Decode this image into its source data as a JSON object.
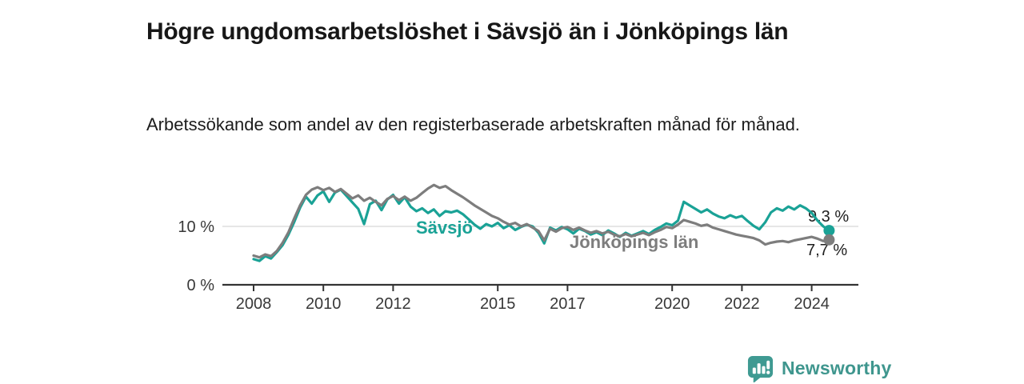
{
  "header": {
    "title": "Högre ungdomsarbetslöshet i Sävsjö än i Jönköpings län",
    "subtitle": "Arbetssökande som andel av den registerbaserade arbetskraften månad för månad."
  },
  "chart_data": {
    "type": "line",
    "title": "Högre ungdomsarbetslöshet i Sävsjö än i Jönköpings län",
    "subtitle": "Arbetssökande som andel av den registerbaserade arbetskraften månad för månad.",
    "x_start": 2008.0,
    "x_end": 2024.5,
    "x_ticks": [
      2008,
      2010,
      2012,
      2015,
      2017,
      2020,
      2022,
      2024
    ],
    "y_axis": {
      "ticks": [
        {
          "value": 10,
          "label": "10 %"
        },
        {
          "value": 0,
          "label": "0 %"
        }
      ],
      "ylim": [
        0,
        18
      ],
      "unit": "%"
    },
    "grid": "horizontal, only at 10 %",
    "legend": "inline labels on lines",
    "series": [
      {
        "name": "Sävsjö",
        "color": "#1aa296",
        "end_label": "9,3 %",
        "end_value": 9.3,
        "values": [
          4.4,
          4.1,
          4.9,
          4.5,
          5.6,
          6.8,
          8.6,
          10.8,
          13.2,
          15.1,
          13.9,
          15.3,
          16.0,
          14.2,
          15.8,
          16.3,
          15.2,
          14.1,
          13.0,
          10.4,
          13.8,
          14.4,
          12.8,
          14.6,
          15.4,
          13.9,
          15.0,
          13.4,
          12.6,
          13.1,
          12.3,
          12.9,
          11.8,
          12.6,
          12.4,
          12.7,
          12.1,
          11.2,
          10.3,
          9.6,
          10.4,
          10.0,
          10.6,
          9.7,
          10.2,
          9.4,
          9.9,
          10.3,
          10.0,
          8.9,
          7.1,
          9.8,
          9.3,
          9.9,
          9.5,
          8.8,
          9.6,
          9.2,
          8.6,
          9.0,
          8.5,
          9.3,
          8.8,
          8.2,
          8.9,
          8.4,
          8.8,
          9.2,
          8.7,
          9.4,
          9.9,
          10.5,
          10.2,
          11.0,
          14.2,
          13.6,
          13.0,
          12.4,
          12.9,
          12.2,
          11.7,
          11.4,
          11.9,
          11.5,
          11.8,
          10.9,
          10.1,
          9.5,
          10.7,
          12.4,
          13.1,
          12.7,
          13.4,
          12.9,
          13.6,
          13.1,
          12.3,
          11.0,
          10.0,
          9.3
        ]
      },
      {
        "name": "Jönköpings län",
        "color": "#7d7d7d",
        "end_label": "7,7 %",
        "end_value": 7.7,
        "values": [
          5.0,
          4.7,
          5.2,
          4.9,
          5.8,
          7.2,
          9.0,
          11.4,
          13.6,
          15.4,
          16.3,
          16.7,
          16.2,
          16.6,
          15.9,
          16.4,
          15.6,
          14.8,
          15.3,
          14.4,
          14.9,
          14.2,
          13.6,
          14.7,
          15.2,
          14.5,
          15.1,
          14.4,
          14.9,
          15.7,
          16.5,
          17.1,
          16.6,
          16.9,
          16.2,
          15.6,
          15.0,
          14.3,
          13.6,
          13.0,
          12.4,
          11.8,
          11.4,
          10.8,
          10.3,
          10.6,
          10.0,
          10.4,
          9.8,
          9.2,
          7.6,
          9.6,
          9.1,
          9.7,
          9.9,
          9.4,
          9.8,
          9.3,
          8.9,
          9.2,
          8.8,
          9.1,
          8.6,
          8.3,
          8.7,
          8.3,
          8.6,
          8.9,
          8.5,
          9.0,
          9.4,
          9.9,
          9.7,
          10.3,
          11.1,
          10.8,
          10.5,
          10.1,
          10.3,
          9.8,
          9.5,
          9.2,
          8.9,
          8.6,
          8.4,
          8.2,
          8.0,
          7.6,
          6.9,
          7.2,
          7.4,
          7.5,
          7.3,
          7.6,
          7.8,
          8.0,
          8.2,
          7.9,
          7.5,
          7.7
        ]
      }
    ]
  },
  "footer": {
    "logo_text": "Newsworthy"
  },
  "colors": {
    "savsjo_line": "#1aa296",
    "county_line": "#7d7d7d",
    "logo_teal": "#3f968e",
    "gridline": "#d7d7d7",
    "axis": "#333333",
    "text_dark": "#171717"
  }
}
